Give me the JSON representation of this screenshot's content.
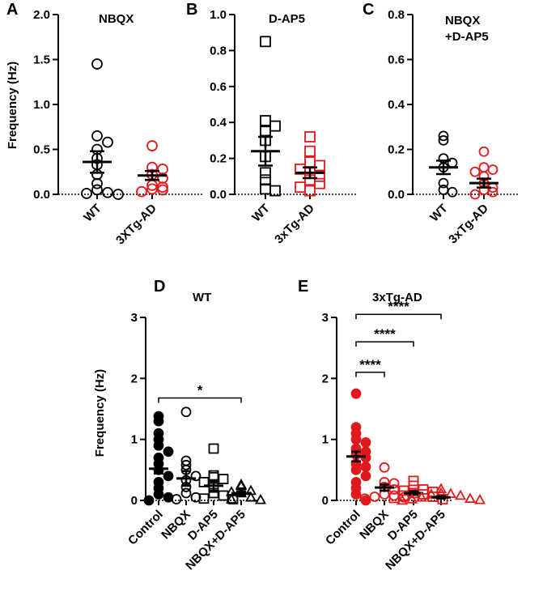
{
  "colors": {
    "wt": "#000000",
    "ad": "#e0191c"
  },
  "chart_data": [
    {
      "panel": "A",
      "type": "scatter",
      "title": "NBQX",
      "ylabel": "Frequency (Hz)",
      "ylim": [
        0,
        2.0
      ],
      "yticks": [
        0.0,
        0.5,
        1.0,
        1.5,
        2.0
      ],
      "yticklabels": [
        "0.0",
        "0.5",
        "1.0",
        "1.5",
        "2.0"
      ],
      "categories": [
        "WT",
        "3XTg-AD"
      ],
      "series": [
        {
          "name": "WT",
          "marker": "circle",
          "filled": false,
          "color": "#000000",
          "values": [
            1.45,
            0.65,
            0.58,
            0.5,
            0.4,
            0.33,
            0.22,
            0.12,
            0.05,
            0.02,
            0.01,
            0.0
          ],
          "mean": 0.36,
          "sem": 0.12
        },
        {
          "name": "3XTg-AD",
          "marker": "circle",
          "filled": false,
          "color": "#e0191c",
          "values": [
            0.54,
            0.3,
            0.28,
            0.22,
            0.18,
            0.1,
            0.08,
            0.06,
            0.05,
            0.03
          ],
          "mean": 0.21,
          "sem": 0.05
        }
      ]
    },
    {
      "panel": "B",
      "type": "scatter",
      "title": "D-AP5",
      "ylabel": "",
      "ylim": [
        0,
        1.0
      ],
      "yticks": [
        0.0,
        0.2,
        0.4,
        0.6,
        0.8,
        1.0
      ],
      "yticklabels": [
        "0.0",
        "0.2",
        "0.4",
        "0.6",
        "0.8",
        "1.0"
      ],
      "categories": [
        "WT",
        "3xTg-AD"
      ],
      "series": [
        {
          "name": "WT",
          "marker": "square",
          "filled": false,
          "color": "#000000",
          "values": [
            0.85,
            0.41,
            0.38,
            0.35,
            0.3,
            0.21,
            0.12,
            0.08,
            0.03,
            0.02
          ],
          "mean": 0.24,
          "sem": 0.08
        },
        {
          "name": "3xTg-AD",
          "marker": "square",
          "filled": false,
          "color": "#e0191c",
          "values": [
            0.32,
            0.24,
            0.18,
            0.16,
            0.14,
            0.12,
            0.1,
            0.08,
            0.06,
            0.04,
            0.02
          ],
          "mean": 0.12,
          "sem": 0.03
        }
      ]
    },
    {
      "panel": "C",
      "type": "scatter",
      "title": "NBQX",
      "title_line2": "+D-AP5",
      "ylabel": "",
      "ylim": [
        0,
        0.8
      ],
      "yticks": [
        0.0,
        0.2,
        0.4,
        0.6,
        0.8
      ],
      "yticklabels": [
        "0.0",
        "0.2",
        "0.4",
        "0.6",
        "0.8"
      ],
      "categories": [
        "WT",
        "3xTg-AD"
      ],
      "series": [
        {
          "name": "WT",
          "marker": "circle",
          "filled": false,
          "color": "#000000",
          "values": [
            0.26,
            0.24,
            0.16,
            0.14,
            0.12,
            0.05,
            0.02,
            0.01
          ],
          "mean": 0.12,
          "sem": 0.03
        },
        {
          "name": "3xTg-AD",
          "marker": "circle",
          "filled": false,
          "color": "#e0191c",
          "values": [
            0.19,
            0.12,
            0.11,
            0.1,
            0.08,
            0.05,
            0.03,
            0.02,
            0.01,
            0.0
          ],
          "mean": 0.05,
          "sem": 0.02
        }
      ]
    },
    {
      "panel": "D",
      "type": "scatter",
      "title": "WT",
      "ylabel": "Frequency (Hz)",
      "ylim": [
        0,
        3
      ],
      "yticks": [
        0,
        1,
        2,
        3
      ],
      "yticklabels": [
        "0",
        "1",
        "2",
        "3"
      ],
      "categories": [
        "Control",
        "NBQX",
        "D-AP5",
        "NBQX+D-AP5"
      ],
      "series": [
        {
          "name": "Control",
          "marker": "circle",
          "filled": true,
          "color": "#000000",
          "values": [
            1.38,
            1.3,
            1.1,
            1.0,
            0.9,
            0.8,
            0.7,
            0.6,
            0.5,
            0.4,
            0.3,
            0.2,
            0.1,
            0.05,
            0.0
          ],
          "mean": 0.52,
          "sem": 0.08
        },
        {
          "name": "NBQX",
          "marker": "circle",
          "filled": false,
          "color": "#000000",
          "values": [
            1.45,
            0.65,
            0.58,
            0.5,
            0.4,
            0.33,
            0.22,
            0.12,
            0.05,
            0.02
          ],
          "mean": 0.36,
          "sem": 0.12
        },
        {
          "name": "D-AP5",
          "marker": "square",
          "filled": false,
          "color": "#000000",
          "values": [
            0.85,
            0.41,
            0.38,
            0.35,
            0.3,
            0.21,
            0.12,
            0.08,
            0.03,
            0.02
          ],
          "mean": 0.24,
          "sem": 0.08
        },
        {
          "name": "NBQX+D-AP5",
          "marker": "triangle",
          "filled": false,
          "color": "#000000",
          "values": [
            0.26,
            0.24,
            0.16,
            0.14,
            0.12,
            0.05,
            0.02,
            0.01
          ],
          "mean": 0.12,
          "sem": 0.03
        }
      ],
      "significance": [
        {
          "from": "Control",
          "to": "NBQX+D-AP5",
          "label": "*",
          "y": 1.68
        }
      ]
    },
    {
      "panel": "E",
      "type": "scatter",
      "title": "3xTg-AD",
      "ylabel": "",
      "ylim": [
        0,
        3
      ],
      "yticks": [
        0,
        1,
        2,
        3
      ],
      "yticklabels": [
        "0",
        "1",
        "2",
        "3"
      ],
      "categories": [
        "Control",
        "NBQX",
        "D-AP5",
        "NBQX+D-AP5"
      ],
      "series": [
        {
          "name": "Control",
          "marker": "circle",
          "filled": true,
          "color": "#e0191c",
          "values": [
            1.75,
            1.2,
            1.1,
            1.0,
            0.95,
            0.85,
            0.8,
            0.75,
            0.7,
            0.6,
            0.55,
            0.5,
            0.4,
            0.3,
            0.2,
            0.1,
            0.0
          ],
          "mean": 0.72,
          "sem": 0.08
        },
        {
          "name": "NBQX",
          "marker": "circle",
          "filled": false,
          "color": "#e0191c",
          "values": [
            0.54,
            0.3,
            0.28,
            0.22,
            0.18,
            0.1,
            0.08,
            0.06,
            0.05,
            0.03
          ],
          "mean": 0.21,
          "sem": 0.05
        },
        {
          "name": "D-AP5",
          "marker": "square",
          "filled": false,
          "color": "#e0191c",
          "values": [
            0.32,
            0.24,
            0.18,
            0.16,
            0.14,
            0.12,
            0.1,
            0.08,
            0.06,
            0.04,
            0.02
          ],
          "mean": 0.12,
          "sem": 0.03
        },
        {
          "name": "NBQX+D-AP5",
          "marker": "triangle",
          "filled": false,
          "color": "#e0191c",
          "values": [
            0.19,
            0.12,
            0.11,
            0.1,
            0.08,
            0.05,
            0.03,
            0.02,
            0.01,
            0.0
          ],
          "mean": 0.05,
          "sem": 0.02
        }
      ],
      "significance": [
        {
          "from": "Control",
          "to": "NBQX",
          "label": "****",
          "y": 2.1
        },
        {
          "from": "Control",
          "to": "D-AP5",
          "label": "****",
          "y": 2.6
        },
        {
          "from": "Control",
          "to": "NBQX+D-AP5",
          "label": "****",
          "y": 3.05
        }
      ]
    }
  ]
}
